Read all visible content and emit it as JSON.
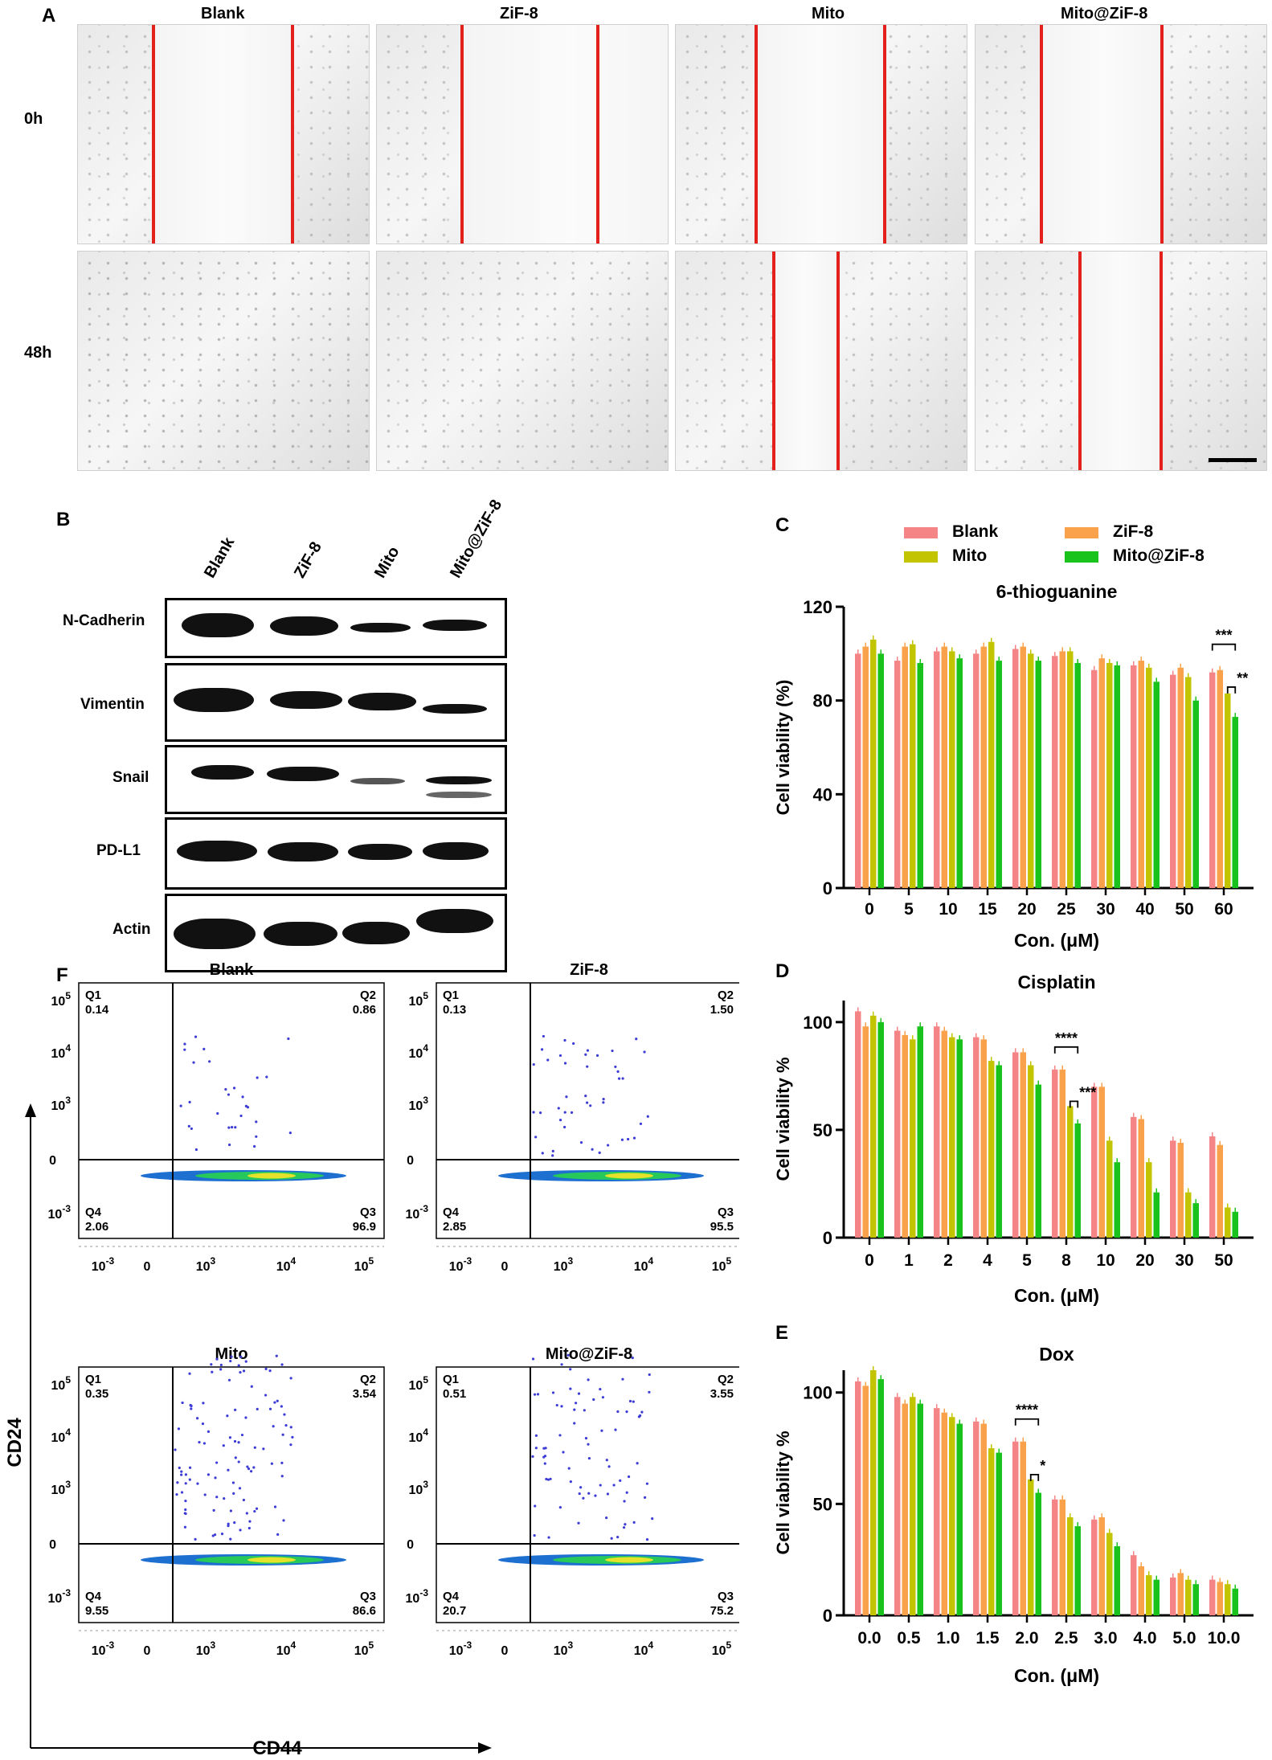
{
  "panel_letters": {
    "a": "A",
    "b": "B",
    "c": "C",
    "d": "D",
    "e": "E",
    "f": "F"
  },
  "groups": [
    "Blank",
    "ZiF-8",
    "Mito",
    "Mito@ZiF-8"
  ],
  "panel_a": {
    "rows": [
      "0h",
      "48h"
    ]
  },
  "panel_b": {
    "proteins": [
      "N-Cadherin",
      "Vimentin",
      "Snail",
      "PD-L1",
      "Actin"
    ]
  },
  "legend": [
    {
      "name": "Blank",
      "color": "#f48485"
    },
    {
      "name": "ZiF-8",
      "color": "#f9a24b"
    },
    {
      "name": "Mito",
      "color": "#c2c400"
    },
    {
      "name": "Mito@ZiF-8",
      "color": "#19c31b"
    }
  ],
  "chart_data": [
    {
      "type": "bar",
      "panel": "C",
      "title": "6-thioguanine",
      "xlabel": "Con. (μM)",
      "ylabel": "Cell viability (%)",
      "ylim": [
        0,
        120
      ],
      "yticks": [
        "0",
        "40",
        "80",
        "120"
      ],
      "categories": [
        "0",
        "5",
        "10",
        "15",
        "20",
        "25",
        "30",
        "40",
        "50",
        "60"
      ],
      "series": [
        {
          "name": "Blank",
          "values": [
            100,
            97,
            101,
            100,
            102,
            99,
            93,
            95,
            91,
            92
          ]
        },
        {
          "name": "ZiF-8",
          "values": [
            103,
            103,
            103,
            103,
            103,
            101,
            98,
            97,
            94,
            93
          ]
        },
        {
          "name": "Mito",
          "values": [
            106,
            104,
            101,
            105,
            100,
            101,
            96,
            94,
            90,
            83
          ]
        },
        {
          "name": "Mito@ZiF-8",
          "values": [
            100,
            96,
            98,
            97,
            97,
            96,
            95,
            88,
            80,
            73
          ]
        }
      ],
      "significance": [
        "***",
        "**"
      ]
    },
    {
      "type": "bar",
      "panel": "D",
      "title": "Cisplatin",
      "xlabel": "Con. (μM)",
      "ylabel": "Cell viability %",
      "ylim": [
        0,
        110
      ],
      "yticks": [
        "0",
        "50",
        "100"
      ],
      "categories": [
        "0",
        "1",
        "2",
        "4",
        "5",
        "8",
        "10",
        "20",
        "30",
        "50"
      ],
      "series": [
        {
          "name": "Blank",
          "values": [
            105,
            96,
            98,
            93,
            86,
            78,
            70,
            56,
            45,
            47
          ]
        },
        {
          "name": "ZiF-8",
          "values": [
            98,
            94,
            96,
            92,
            86,
            78,
            70,
            55,
            44,
            43
          ]
        },
        {
          "name": "Mito",
          "values": [
            103,
            92,
            93,
            82,
            80,
            61,
            45,
            35,
            21,
            14
          ]
        },
        {
          "name": "Mito@ZiF-8",
          "values": [
            100,
            98,
            92,
            80,
            71,
            53,
            35,
            21,
            16,
            12
          ]
        }
      ],
      "significance": [
        "****",
        "***"
      ]
    },
    {
      "type": "bar",
      "panel": "E",
      "title": "Dox",
      "xlabel": "Con. (μM)",
      "ylabel": "Cell viability %",
      "ylim": [
        0,
        110
      ],
      "yticks": [
        "0",
        "50",
        "100"
      ],
      "categories": [
        "0.0",
        "0.5",
        "1.0",
        "1.5",
        "2.0",
        "2.5",
        "3.0",
        "4.0",
        "5.0",
        "10.0"
      ],
      "series": [
        {
          "name": "Blank",
          "values": [
            105,
            98,
            93,
            87,
            78,
            52,
            43,
            27,
            17,
            16
          ]
        },
        {
          "name": "ZiF-8",
          "values": [
            103,
            95,
            91,
            86,
            78,
            52,
            44,
            22,
            19,
            15
          ]
        },
        {
          "name": "Mito",
          "values": [
            110,
            98,
            89,
            75,
            61,
            44,
            37,
            18,
            16,
            14
          ]
        },
        {
          "name": "Mito@ZiF-8",
          "values": [
            106,
            95,
            86,
            73,
            55,
            40,
            31,
            16,
            14,
            12
          ]
        }
      ],
      "significance": [
        "****",
        "*"
      ]
    }
  ],
  "flow": {
    "xlabel": "CD44",
    "ylabel": "CD24",
    "ytick_labels": {
      "e5": "5",
      "e4": "4",
      "e3": "3",
      "zero": "0",
      "neg3": "-3"
    },
    "xtick_labels": {
      "neg3": "-3",
      "zero": "0",
      "e3": "3",
      "e4": "4",
      "e5": "5"
    },
    "tick_base": "10",
    "plots": [
      {
        "name": "Blank",
        "q1": "0.14",
        "q2": "0.86",
        "q3": "96.9",
        "q4": "2.06"
      },
      {
        "name": "ZiF-8",
        "q1": "0.13",
        "q2": "1.50",
        "q3": "95.5",
        "q4": "2.85"
      },
      {
        "name": "Mito",
        "q1": "0.35",
        "q2": "3.54",
        "q3": "86.6",
        "q4": "9.55"
      },
      {
        "name": "Mito@ZiF-8",
        "q1": "0.51",
        "q2": "3.55",
        "q3": "75.2",
        "q4": "20.7"
      }
    ],
    "quadrant_labels": [
      "Q1",
      "Q2",
      "Q3",
      "Q4"
    ]
  }
}
